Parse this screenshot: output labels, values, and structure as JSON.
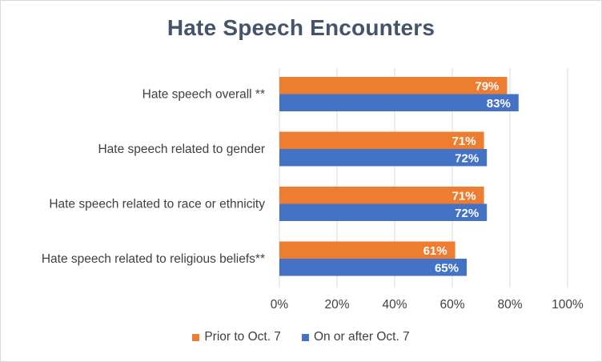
{
  "colors": {
    "prior": "#ed7d31",
    "after": "#4472c4",
    "grid": "#d9d9d9",
    "title": "#44546a"
  },
  "chart_data": {
    "type": "bar",
    "orientation": "horizontal",
    "title": "Hate Speech Encounters",
    "categories": [
      "Hate speech overall **",
      "Hate speech related to gender",
      "Hate speech related to race or ethnicity",
      "Hate speech related to religious beliefs**"
    ],
    "series": [
      {
        "name": "Prior to Oct. 7",
        "values": [
          79,
          71,
          71,
          61
        ],
        "labels": [
          "79%",
          "71%",
          "71%",
          "61%"
        ]
      },
      {
        "name": "On or after Oct. 7",
        "values": [
          83,
          72,
          72,
          65
        ],
        "labels": [
          "83%",
          "72%",
          "72%",
          "65%"
        ]
      }
    ],
    "xlim": [
      0,
      100
    ],
    "xticks": [
      0,
      20,
      40,
      60,
      80,
      100
    ],
    "xtick_labels": [
      "0%",
      "20%",
      "40%",
      "60%",
      "80%",
      "100%"
    ],
    "grid": true,
    "legend_position": "bottom"
  }
}
